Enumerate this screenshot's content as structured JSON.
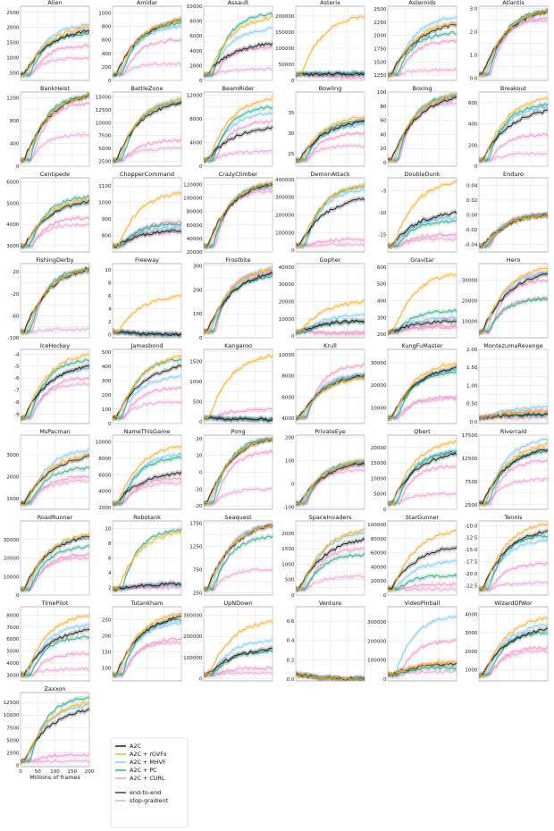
{
  "chart_data": {
    "type": "line",
    "x_unit_label": "Millions of frames",
    "x_ticks": [
      0,
      50,
      100,
      150,
      200
    ],
    "legend": {
      "placement": "bottom-left",
      "methods": [
        {
          "name": "A2C",
          "color": "#111111"
        },
        {
          "name": "A2C + rGVFs",
          "color": "#f0b030"
        },
        {
          "name": "A2C + MHVF",
          "color": "#7fc8f0"
        },
        {
          "name": "A2C + PC",
          "color": "#2aa886"
        },
        {
          "name": "A2C + CURL",
          "color": "#e895c8"
        }
      ],
      "styles": [
        {
          "name": "end-to-end",
          "color": "#333333"
        },
        {
          "name": "stop-gradient",
          "color": "#e8a8d0"
        }
      ]
    },
    "grid": true,
    "panels": [
      {
        "title": "Alien",
        "ylim": [
          250,
          2700
        ],
        "yticks": [
          "500",
          "1000",
          "1500",
          "2000",
          "2500"
        ],
        "final": [
          1900,
          2000,
          2100,
          1800,
          1400,
          1000
        ]
      },
      {
        "title": "Amidar",
        "ylim": [
          0,
          1100
        ],
        "yticks": [
          "0",
          "200",
          "400",
          "600",
          "800",
          "1000"
        ],
        "final": [
          900,
          900,
          800,
          850,
          600,
          250
        ]
      },
      {
        "title": "Assault",
        "ylim": [
          0,
          10000
        ],
        "yticks": [
          "0",
          "2000",
          "4000",
          "6000",
          "8000",
          "10000"
        ],
        "final": [
          5000,
          8500,
          7000,
          9000,
          4500,
          1500
        ]
      },
      {
        "title": "Asterix",
        "ylim": [
          0,
          230000
        ],
        "yticks": [
          "0",
          "50000",
          "100000",
          "150000",
          "200000"
        ],
        "final": [
          20000,
          200000,
          25000,
          22000,
          15000,
          8000
        ]
      },
      {
        "title": "Asteroids",
        "ylim": [
          1150,
          2550
        ],
        "yticks": [
          "1250",
          "1500",
          "1750",
          "2000",
          "2250",
          "2500"
        ],
        "final": [
          2200,
          2250,
          2350,
          2050,
          1900,
          1350
        ]
      },
      {
        "title": "Atlantis",
        "ylim": [
          -0.1,
          3.1
        ],
        "yticks": [
          "0.0",
          "0.5",
          "1.0",
          "1.5",
          "2.0",
          "2.5",
          "3.0"
        ],
        "final": [
          2.9,
          2.9,
          2.8,
          2.9,
          2.6,
          2.5
        ]
      },
      {
        "title": "BankHeist",
        "ylim": [
          0,
          1300
        ],
        "yticks": [
          "0",
          "200",
          "400",
          "600",
          "800",
          "1000",
          "1200"
        ],
        "final": [
          1240,
          1240,
          1230,
          1240,
          1100,
          550
        ]
      },
      {
        "title": "BattleZone",
        "ylim": [
          1500,
          16000
        ],
        "yticks": [
          "2500",
          "5000",
          "7500",
          "10000",
          "12500",
          "15000"
        ],
        "final": [
          14000,
          14500,
          14500,
          14000,
          6500,
          5000
        ]
      },
      {
        "title": "BeamRider",
        "ylim": [
          0,
          12500
        ],
        "yticks": [
          "0",
          "2000",
          "4000",
          "6000",
          "8000",
          "10000",
          "12000"
        ],
        "final": [
          6500,
          11500,
          9000,
          10000,
          7500,
          2500
        ]
      },
      {
        "title": "Bowling",
        "ylim": [
          22,
          40
        ],
        "yticks": [
          "25",
          "30",
          "35"
        ],
        "final": [
          33,
          34,
          32,
          33,
          30,
          27
        ]
      },
      {
        "title": "Boxing",
        "ylim": [
          -5,
          100
        ],
        "yticks": [
          "0",
          "20",
          "40",
          "60",
          "80",
          "100"
        ],
        "final": [
          92,
          97,
          97,
          95,
          92,
          85
        ]
      },
      {
        "title": "Breakout",
        "ylim": [
          0,
          700
        ],
        "yticks": [
          "0",
          "200",
          "400",
          "600"
        ],
        "final": [
          520,
          640,
          560,
          580,
          300,
          120
        ]
      },
      {
        "title": "Centipede",
        "ylim": [
          2700,
          6200
        ],
        "yticks": [
          "3000",
          "4000",
          "5000",
          "6000"
        ],
        "final": [
          5100,
          5200,
          5000,
          5300,
          4300,
          4000
        ]
      },
      {
        "title": "ChopperCommand",
        "ylim": [
          700,
          1150
        ],
        "yticks": [
          "800",
          "900",
          "1000",
          "1100"
        ],
        "final": [
          830,
          1060,
          850,
          870,
          880,
          820
        ]
      },
      {
        "title": "CrazyClimber",
        "ylim": [
          20000,
          130000
        ],
        "yticks": [
          "20000",
          "40000",
          "60000",
          "80000",
          "100000",
          "120000"
        ],
        "final": [
          122000,
          123000,
          118000,
          120000,
          115000,
          110000
        ]
      },
      {
        "title": "DemonAttack",
        "ylim": [
          -10000,
          410000
        ],
        "yticks": [
          "0",
          "100000",
          "200000",
          "300000",
          "400000"
        ],
        "final": [
          290000,
          370000,
          340000,
          360000,
          60000,
          30000
        ]
      },
      {
        "title": "DoubleDunk",
        "ylim": [
          -19,
          -2
        ],
        "yticks": [
          "-15",
          "-10",
          "-5"
        ],
        "final": [
          -10,
          -3,
          -11,
          -12,
          -15,
          -16
        ]
      },
      {
        "title": "Enduro",
        "ylim": [
          -0.05,
          0.05
        ],
        "yticks": [
          "-0.04",
          "-0.02",
          "0.00",
          "0.02",
          "0.04"
        ],
        "final": [
          0,
          0,
          0,
          0,
          0,
          0
        ]
      },
      {
        "title": "FishingDerby",
        "ylim": [
          -100,
          35
        ],
        "yticks": [
          "-100",
          "-80",
          "-60",
          "-40",
          "-20",
          "0",
          "20"
        ],
        "final": [
          25,
          25,
          22,
          26,
          20,
          -85
        ]
      },
      {
        "title": "Freeway",
        "ylim": [
          -0.5,
          11
        ],
        "yticks": [
          "0",
          "2",
          "4",
          "6",
          "8",
          "10"
        ],
        "final": [
          0,
          6,
          0,
          0,
          0,
          0
        ]
      },
      {
        "title": "Frostbite",
        "ylim": [
          0,
          310
        ],
        "yticks": [
          "0",
          "50",
          "100",
          "150",
          "200",
          "250",
          "300"
        ],
        "final": [
          270,
          290,
          285,
          255,
          280,
          270
        ]
      },
      {
        "title": "Gopher",
        "ylim": [
          -1000,
          42000
        ],
        "yticks": [
          "0",
          "10000",
          "20000",
          "30000",
          "40000"
        ],
        "final": [
          9000,
          20000,
          12000,
          8000,
          2000,
          1500
        ]
      },
      {
        "title": "Gravitar",
        "ylim": [
          180,
          620
        ],
        "yticks": [
          "200",
          "300",
          "400",
          "500",
          "600"
        ],
        "final": [
          280,
          560,
          300,
          340,
          250,
          240
        ]
      },
      {
        "title": "Hero",
        "ylim": [
          2000,
          38000
        ],
        "yticks": [
          "10000",
          "20000",
          "30000"
        ],
        "final": [
          33000,
          36000,
          34000,
          21000,
          30000,
          21000
        ]
      },
      {
        "title": "IceHockey",
        "ylim": [
          -9.8,
          -3.6
        ],
        "yticks": [
          "-9",
          "-8",
          "-7",
          "-6",
          "-5",
          "-4"
        ],
        "final": [
          -5,
          -4,
          -5.2,
          -4.5,
          -6,
          -6.5
        ]
      },
      {
        "title": "Jamesbond",
        "ylim": [
          0,
          520
        ],
        "yticks": [
          "0",
          "100",
          "200",
          "300",
          "400",
          "500"
        ],
        "final": [
          400,
          470,
          330,
          450,
          250,
          150
        ]
      },
      {
        "title": "Kangaroo",
        "ylim": [
          -50,
          1800
        ],
        "yticks": [
          "0",
          "250",
          "500",
          "750",
          "1000",
          "1250",
          "1500",
          "1750"
        ],
        "final": [
          50,
          1650,
          60,
          60,
          300,
          50
        ]
      },
      {
        "title": "Krull",
        "ylim": [
          3500,
          10500
        ],
        "yticks": [
          "4000",
          "6000",
          "8000",
          "10000"
        ],
        "final": [
          8000,
          7800,
          8200,
          7900,
          9000,
          8000
        ]
      },
      {
        "title": "KungFuMaster",
        "ylim": [
          3000,
          36000
        ],
        "yticks": [
          "10000",
          "20000",
          "30000"
        ],
        "final": [
          28000,
          30000,
          27000,
          26000,
          15000,
          14000
        ]
      },
      {
        "title": "MontezumaRevenge",
        "ylim": [
          -0.05,
          2.0
        ],
        "yticks": [
          "0.0",
          "0.25",
          "0.50",
          "0.75",
          "1.00",
          "1.25",
          "1.50",
          "1.75",
          "2.00"
        ],
        "final": [
          0.2,
          0.3,
          0.4,
          0.2,
          0.3,
          0.1
        ]
      },
      {
        "title": "MsPacman",
        "ylim": [
          500,
          3900
        ],
        "yticks": [
          "1000",
          "2000",
          "3000"
        ],
        "final": [
          2900,
          3000,
          3200,
          2400,
          2000,
          1800
        ]
      },
      {
        "title": "NameThisGame",
        "ylim": [
          1800,
          10800
        ],
        "yticks": [
          "2000",
          "4000",
          "6000",
          "8000",
          "10000"
        ],
        "final": [
          6200,
          9500,
          8500,
          8000,
          5500,
          5000
        ]
      },
      {
        "title": "Pong",
        "ylim": [
          -22,
          22
        ],
        "yticks": [
          "-20",
          "-10",
          "0",
          "10",
          "20"
        ],
        "final": [
          20,
          20,
          20,
          20,
          12,
          -10
        ]
      },
      {
        "title": "PrivateEye",
        "ylim": [
          -110,
          210
        ],
        "yticks": [
          "-100",
          "0",
          "100",
          "200"
        ],
        "final": [
          90,
          100,
          100,
          95,
          80,
          60
        ]
      },
      {
        "title": "Qbert",
        "ylim": [
          0,
          24000
        ],
        "yticks": [
          "0",
          "5000",
          "10000",
          "15000",
          "20000"
        ],
        "final": [
          18000,
          22000,
          19000,
          18500,
          14000,
          5000
        ]
      },
      {
        "title": "Riverraid",
        "ylim": [
          1500,
          17500
        ],
        "yticks": [
          "2500",
          "5000",
          "7500",
          "10000",
          "12500",
          "15000",
          "17500"
        ],
        "final": [
          14500,
          15500,
          16500,
          14000,
          12000,
          8000
        ]
      },
      {
        "title": "RoadRunner",
        "ylim": [
          0,
          40000
        ],
        "yticks": [
          "0",
          "10000",
          "20000",
          "30000"
        ],
        "final": [
          32000,
          33000,
          31000,
          26000,
          22000,
          20000
        ]
      },
      {
        "title": "Robotank",
        "ylim": [
          1,
          11
        ],
        "yticks": [
          "2",
          "4",
          "6",
          "8",
          "10"
        ],
        "final": [
          2.5,
          9.5,
          2.5,
          9.8,
          2.3,
          2.0
        ]
      },
      {
        "title": "Seaquest",
        "ylim": [
          200,
          1800
        ],
        "yticks": [
          "250",
          "500",
          "750",
          "1000",
          "1250",
          "1500",
          "1750"
        ],
        "final": [
          1700,
          1700,
          1700,
          1450,
          1680,
          750
        ]
      },
      {
        "title": "SpaceInvaders",
        "ylim": [
          0,
          2400
        ],
        "yticks": [
          "0",
          "250",
          "500",
          "750",
          "1000",
          "1250",
          "1500",
          "1750",
          "2000",
          "2250"
        ],
        "final": [
          1800,
          2100,
          2000,
          1300,
          1500,
          600
        ]
      },
      {
        "title": "StarGunner",
        "ylim": [
          0,
          105000
        ],
        "yticks": [
          "0",
          "20000",
          "40000",
          "60000",
          "80000",
          "100000"
        ],
        "final": [
          68000,
          90000,
          48000,
          28000,
          15000,
          8000
        ]
      },
      {
        "title": "Tennis",
        "ylim": [
          -24.5,
          -9
        ],
        "yticks": [
          "-22.5",
          "-20.0",
          "-17.5",
          "-15.0",
          "-12.5",
          "-10.0"
        ],
        "final": [
          -11,
          -9.5,
          -13,
          -12,
          -18,
          -22
        ]
      },
      {
        "title": "TimePilot",
        "ylim": [
          2500,
          8700
        ],
        "yticks": [
          "3000",
          "4000",
          "5000",
          "6000",
          "7000",
          "8000"
        ],
        "final": [
          6800,
          8000,
          7200,
          6200,
          4800,
          3500
        ]
      },
      {
        "title": "Tutankham",
        "ylim": [
          60,
          290
        ],
        "yticks": [
          "100",
          "150",
          "200",
          "250"
        ],
        "final": [
          260,
          270,
          240,
          250,
          190,
          180
        ]
      },
      {
        "title": "UpNDown",
        "ylim": [
          -10000,
          340000
        ],
        "yticks": [
          "0",
          "100000",
          "200000",
          "300000"
        ],
        "final": [
          140000,
          270000,
          180000,
          130000,
          50000,
          30000
        ]
      },
      {
        "title": "Venture",
        "ylim": [
          -0.02,
          0.75
        ],
        "yticks": [
          "0.0",
          "0.2",
          "0.4",
          "0.6"
        ],
        "final": [
          0,
          0,
          0,
          0,
          0,
          0
        ]
      },
      {
        "title": "VideoPinball",
        "ylim": [
          -10000,
          380000
        ],
        "yticks": [
          "0",
          "100000",
          "200000",
          "300000"
        ],
        "final": [
          80000,
          90000,
          330000,
          60000,
          200000,
          40000
        ]
      },
      {
        "title": "WizardOfWor",
        "ylim": [
          400,
          4400
        ],
        "yticks": [
          "1000",
          "2000",
          "3000",
          "4000"
        ],
        "final": [
          3200,
          3800,
          3400,
          3000,
          2200,
          2000
        ]
      },
      {
        "title": "Zaxxon",
        "ylim": [
          -300,
          14500
        ],
        "yticks": [
          "0",
          "2500",
          "5000",
          "7500",
          "10000",
          "12500"
        ],
        "final": [
          11000,
          12500,
          12000,
          13500,
          2000,
          800
        ]
      }
    ]
  }
}
